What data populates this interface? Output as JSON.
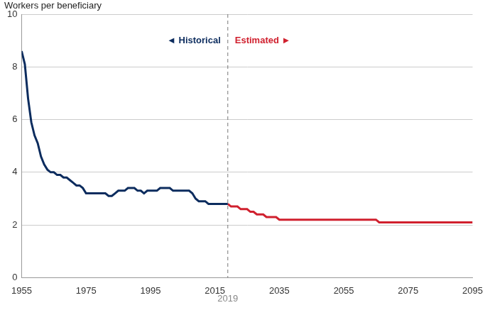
{
  "chart_data": {
    "type": "line",
    "y_label": "Workers per beneficiary",
    "series": [
      {
        "color": "#0c2c5e",
        "line_style": "solid",
        "x": [
          1955,
          1956,
          1957,
          1958,
          1959,
          1960,
          1961,
          1962,
          1963,
          1964,
          1965,
          1966,
          1967,
          1968,
          1969,
          1970,
          1971,
          1972,
          1973,
          1974,
          1975,
          1976,
          1977,
          1978,
          1979,
          1980,
          1981,
          1982,
          1983,
          1984,
          1985,
          1986,
          1987,
          1988,
          1989,
          1990,
          1991,
          1992,
          1993,
          1994,
          1995,
          1996,
          1997,
          1998,
          1999,
          2000,
          2001,
          2002,
          2003,
          2004,
          2005,
          2006,
          2007,
          2008,
          2009,
          2010,
          2011,
          2012,
          2013,
          2014,
          2015,
          2016,
          2017,
          2018,
          2019
        ],
        "values": [
          8.6,
          8.1,
          6.8,
          5.9,
          5.4,
          5.1,
          4.6,
          4.3,
          4.1,
          4.0,
          4.0,
          3.9,
          3.9,
          3.8,
          3.8,
          3.7,
          3.6,
          3.5,
          3.5,
          3.4,
          3.2,
          3.2,
          3.2,
          3.2,
          3.2,
          3.2,
          3.2,
          3.1,
          3.1,
          3.2,
          3.3,
          3.3,
          3.3,
          3.4,
          3.4,
          3.4,
          3.3,
          3.3,
          3.2,
          3.3,
          3.3,
          3.3,
          3.3,
          3.4,
          3.4,
          3.4,
          3.4,
          3.3,
          3.3,
          3.3,
          3.3,
          3.3,
          3.3,
          3.2,
          3.0,
          2.9,
          2.9,
          2.9,
          2.8,
          2.8,
          2.8,
          2.8,
          2.8,
          2.8,
          2.8
        ]
      },
      {
        "color": "#d0202e",
        "line_style": "solid",
        "x": [
          2019,
          2020,
          2021,
          2022,
          2023,
          2024,
          2025,
          2026,
          2027,
          2028,
          2029,
          2030,
          2031,
          2032,
          2033,
          2034,
          2035,
          2036,
          2037,
          2038,
          2039,
          2040,
          2041,
          2042,
          2043,
          2044,
          2045,
          2046,
          2047,
          2048,
          2049,
          2050,
          2051,
          2052,
          2053,
          2054,
          2055,
          2056,
          2057,
          2058,
          2059,
          2060,
          2061,
          2062,
          2063,
          2064,
          2065,
          2066,
          2067,
          2068,
          2069,
          2070,
          2071,
          2072,
          2073,
          2074,
          2075,
          2076,
          2077,
          2078,
          2079,
          2080,
          2081,
          2082,
          2083,
          2084,
          2085,
          2086,
          2087,
          2088,
          2089,
          2090,
          2091,
          2092,
          2093,
          2094,
          2095
        ],
        "values": [
          2.8,
          2.7,
          2.7,
          2.7,
          2.6,
          2.6,
          2.6,
          2.5,
          2.5,
          2.4,
          2.4,
          2.4,
          2.3,
          2.3,
          2.3,
          2.3,
          2.2,
          2.2,
          2.2,
          2.2,
          2.2,
          2.2,
          2.2,
          2.2,
          2.2,
          2.2,
          2.2,
          2.2,
          2.2,
          2.2,
          2.2,
          2.2,
          2.2,
          2.2,
          2.2,
          2.2,
          2.2,
          2.2,
          2.2,
          2.2,
          2.2,
          2.2,
          2.2,
          2.2,
          2.2,
          2.2,
          2.2,
          2.1,
          2.1,
          2.1,
          2.1,
          2.1,
          2.1,
          2.1,
          2.1,
          2.1,
          2.1,
          2.1,
          2.1,
          2.1,
          2.1,
          2.1,
          2.1,
          2.1,
          2.1,
          2.1,
          2.1,
          2.1,
          2.1,
          2.1,
          2.1,
          2.1,
          2.1,
          2.1,
          2.1,
          2.1,
          2.1
        ]
      }
    ],
    "xlim": [
      1955,
      2095
    ],
    "xticks": [
      1955,
      1975,
      1995,
      2015,
      2035,
      2055,
      2075,
      2095
    ],
    "ylim": [
      0,
      10
    ],
    "yticks": [
      0,
      2,
      4,
      6,
      8,
      10
    ],
    "grid": true,
    "vline": {
      "x": 2019
    },
    "annotations": [
      {
        "text": "◄ Historical",
        "color": "#0c2c5e"
      },
      {
        "text": "Estimated ►",
        "color": "#d0202e"
      }
    ]
  }
}
